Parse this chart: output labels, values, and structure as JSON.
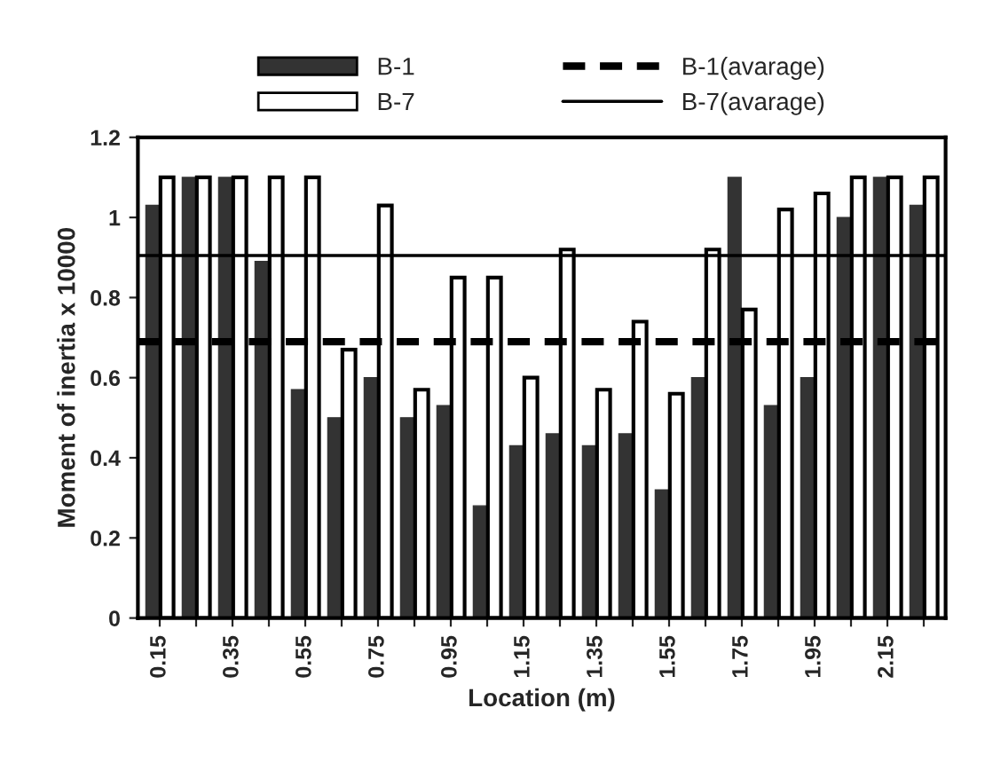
{
  "chart_data": {
    "type": "bar",
    "xlabel": "Location (m)",
    "ylabel": "Moment of inertia x 10000",
    "categories": [
      "0.15",
      null,
      "0.35",
      null,
      "0.55",
      null,
      "0.75",
      null,
      "0.95",
      null,
      "1.15",
      null,
      "1.35",
      null,
      "1.55",
      null,
      "1.75",
      null,
      "1.95",
      null,
      "2.15",
      null
    ],
    "series": [
      {
        "name": "B-1",
        "color": "#333333",
        "values": [
          1.03,
          1.1,
          1.1,
          0.89,
          0.57,
          0.5,
          0.6,
          0.5,
          0.53,
          0.28,
          0.43,
          0.46,
          0.43,
          0.46,
          0.32,
          0.6,
          1.1,
          0.53,
          0.6,
          1.0,
          1.1,
          1.03
        ]
      },
      {
        "name": "B-7",
        "color": "#ffffff",
        "values": [
          1.1,
          1.1,
          1.1,
          1.1,
          1.1,
          0.67,
          1.03,
          0.57,
          0.85,
          0.85,
          0.6,
          0.92,
          0.57,
          0.74,
          0.56,
          0.92,
          0.77,
          1.02,
          1.06,
          1.1,
          1.1,
          1.1
        ]
      }
    ],
    "ref_lines": [
      {
        "axis": "y",
        "value": 0.69,
        "label": "B-1(avarage)",
        "color": "#000000",
        "line_style": "dashed"
      },
      {
        "axis": "y",
        "value": 0.905,
        "label": "B-7(avarage)",
        "color": "#000000",
        "line_style": "solid"
      }
    ],
    "ylim": [
      0,
      1.2
    ],
    "yticks": [
      0,
      {
        "value": 0.2,
        "label": "0.2"
      },
      {
        "value": 0.4,
        "label": "0.4"
      },
      {
        "value": 0.6,
        "label": "0.6"
      },
      {
        "value": 0.8,
        "label": "0.8"
      },
      1,
      {
        "value": 1.2,
        "label": "1.2"
      }
    ],
    "legend": "top",
    "grid": false
  }
}
